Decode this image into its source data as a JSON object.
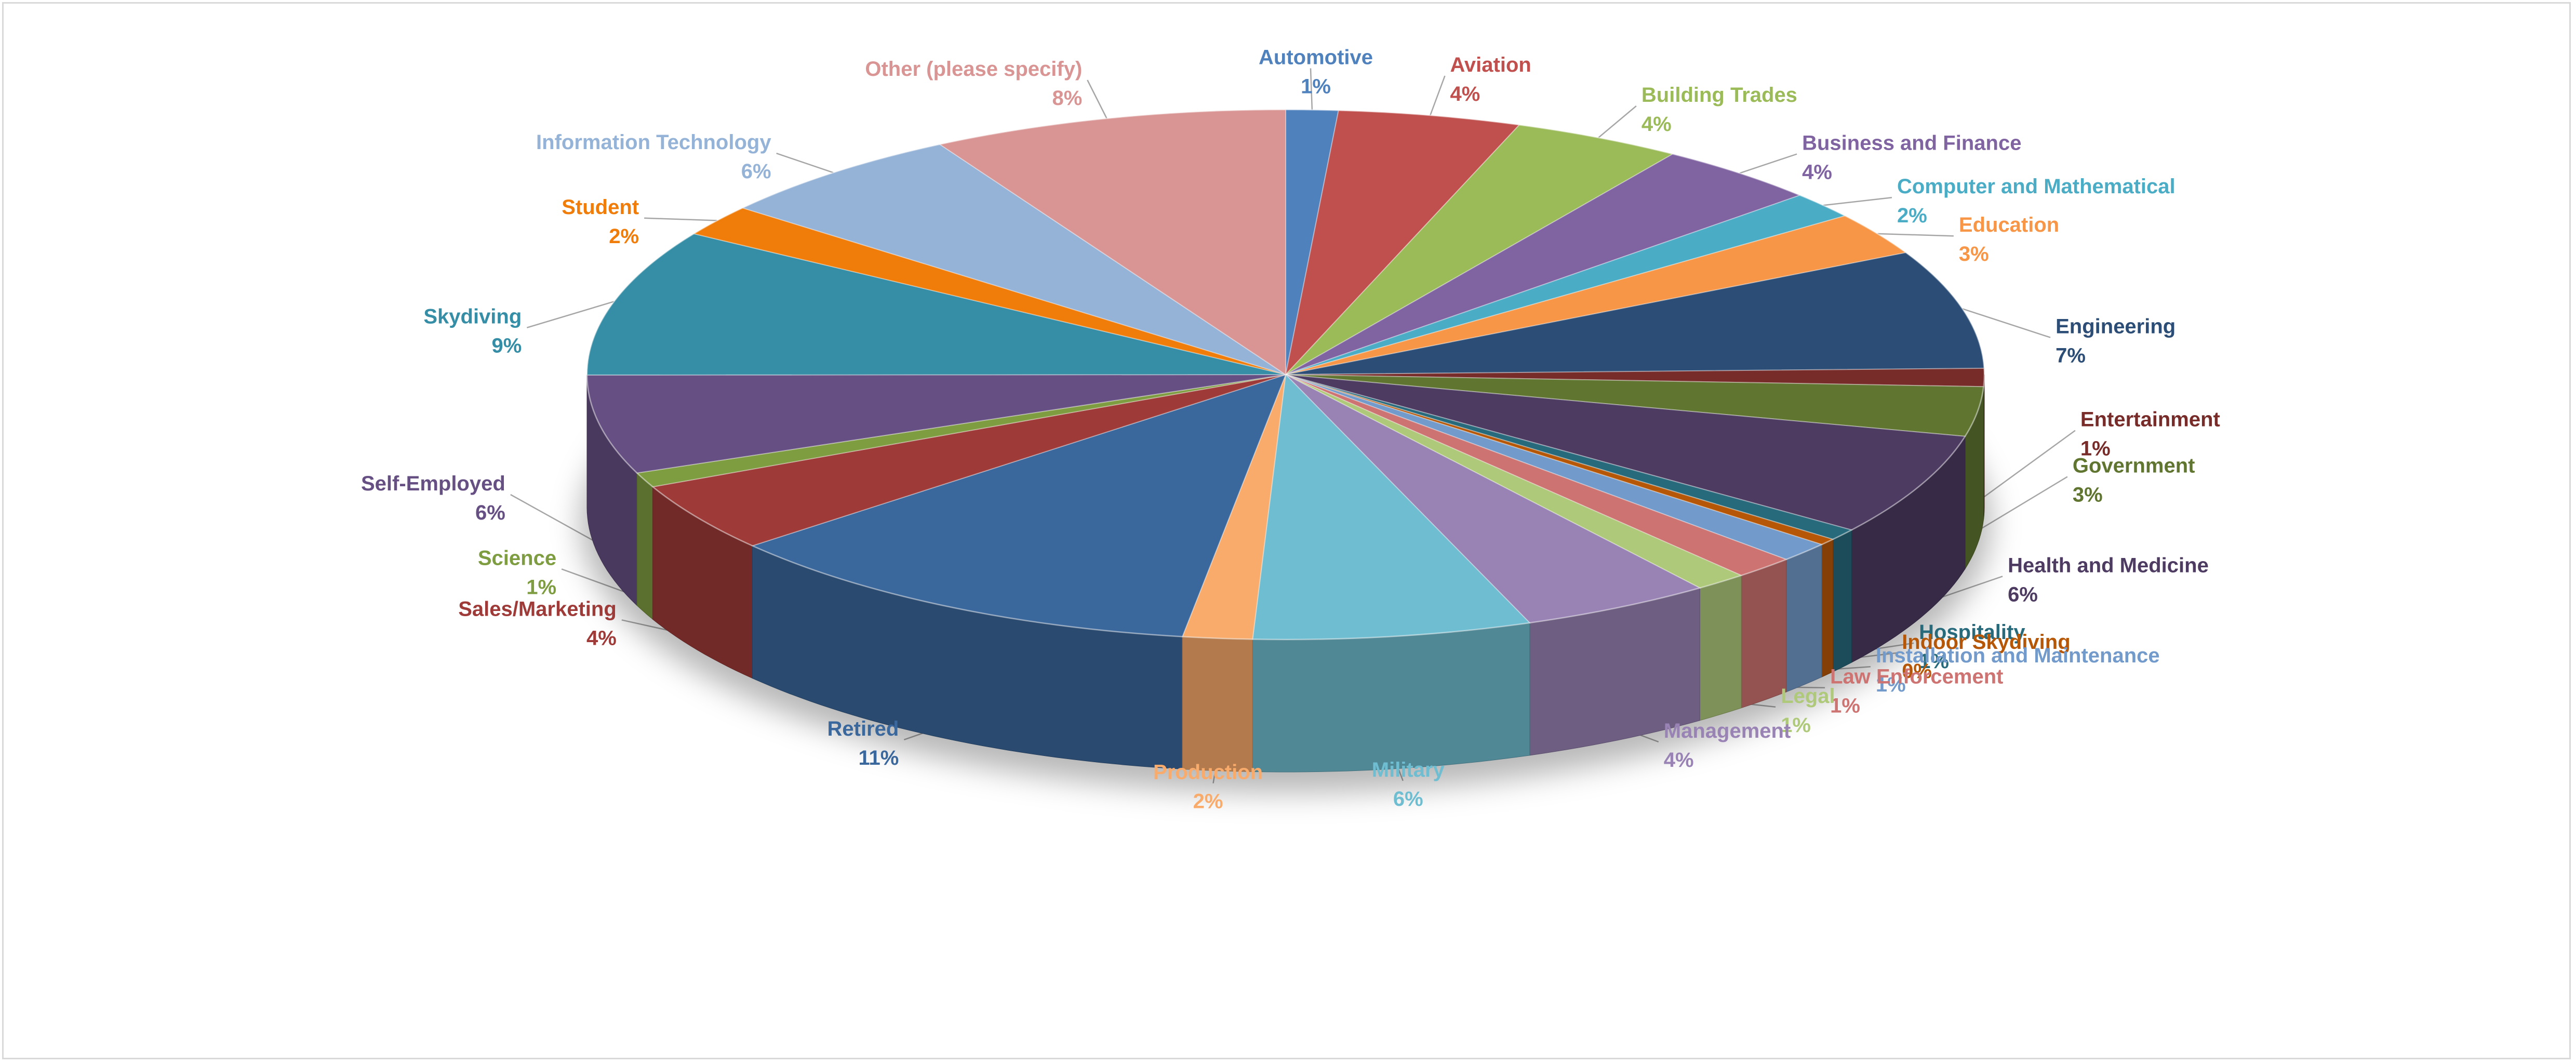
{
  "chart_data": {
    "type": "pie",
    "style": "3d-pie",
    "title": "",
    "slices": [
      {
        "label": "Automotive",
        "percent_label": "1%",
        "value": 1.2,
        "color": "#4F81BD"
      },
      {
        "label": "Aviation",
        "percent_label": "4%",
        "value": 4.2,
        "color": "#C0504D"
      },
      {
        "label": "Building Trades",
        "percent_label": "4%",
        "value": 3.9,
        "color": "#9BBB59"
      },
      {
        "label": "Business and Finance",
        "percent_label": "4%",
        "value": 3.8,
        "color": "#8064A2"
      },
      {
        "label": "Computer and Mathematical",
        "percent_label": "2%",
        "value": 1.6,
        "color": "#4BACC6"
      },
      {
        "label": "Education",
        "percent_label": "3%",
        "value": 2.6,
        "color": "#F79646"
      },
      {
        "label": "Engineering",
        "percent_label": "7%",
        "value": 7.2,
        "color": "#2C4D75"
      },
      {
        "label": "Entertainment",
        "percent_label": "1%",
        "value": 1.1,
        "color": "#772C2A"
      },
      {
        "label": "Government",
        "percent_label": "3%",
        "value": 3.0,
        "color": "#5F7530"
      },
      {
        "label": "Health and Medicine",
        "percent_label": "6%",
        "value": 6.2,
        "color": "#4D3B62"
      },
      {
        "label": "Hospitality",
        "percent_label": "1%",
        "value": 0.7,
        "color": "#276A7C"
      },
      {
        "label": "Indoor Skydiving",
        "percent_label": "0%",
        "value": 0.4,
        "color": "#B65708"
      },
      {
        "label": "Installation and Maintenance",
        "percent_label": "1%",
        "value": 1.2,
        "color": "#729ACA"
      },
      {
        "label": "Law Enforcement",
        "percent_label": "1%",
        "value": 1.4,
        "color": "#CD7371"
      },
      {
        "label": "Legal",
        "percent_label": "1%",
        "value": 1.2,
        "color": "#AFC97A"
      },
      {
        "label": "Management",
        "percent_label": "4%",
        "value": 4.4,
        "color": "#9983B5"
      },
      {
        "label": "Military",
        "percent_label": "6%",
        "value": 6.4,
        "color": "#6FBDD1"
      },
      {
        "label": "Production",
        "percent_label": "2%",
        "value": 1.6,
        "color": "#F9AB6B"
      },
      {
        "label": "Retired",
        "percent_label": "11%",
        "value": 11.4,
        "color": "#3A679C"
      },
      {
        "label": "Sales/Marketing",
        "percent_label": "4%",
        "value": 4.2,
        "color": "#9E3B38"
      },
      {
        "label": "Science",
        "percent_label": "1%",
        "value": 0.9,
        "color": "#7E9C40"
      },
      {
        "label": "Self-Employed",
        "percent_label": "6%",
        "value": 6.0,
        "color": "#664F83"
      },
      {
        "label": "Skydiving",
        "percent_label": "9%",
        "value": 8.9,
        "color": "#358EA6"
      },
      {
        "label": "Student",
        "percent_label": "2%",
        "value": 1.9,
        "color": "#F07C0A"
      },
      {
        "label": "Information Technology",
        "percent_label": "6%",
        "value": 5.9,
        "color": "#95B3D7"
      },
      {
        "label": "Other (please specify)",
        "percent_label": "8%",
        "value": 8.2,
        "color": "#D99594"
      }
    ],
    "legend": "none",
    "data_labels": "outside-with-leader-lines"
  }
}
